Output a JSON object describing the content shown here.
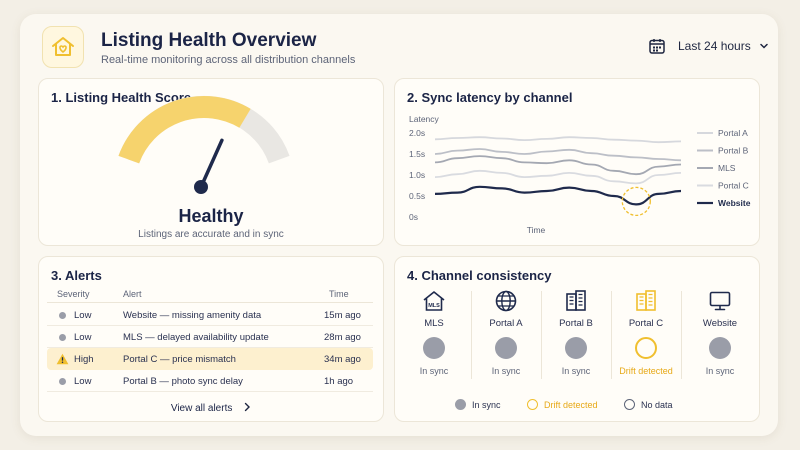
{
  "header": {
    "title": "Listing Health Overview",
    "subtitle": "Real-time monitoring across all distribution channels",
    "logo_icon": "house-heart-icon",
    "range_label": "Last 24 hours",
    "accent": "#f0bf2f"
  },
  "health": {
    "title": "1.  Listing Health Score",
    "status": "Healthy",
    "caption": "Listings are accurate and in sync",
    "score_fraction": 0.72
  },
  "sync": {
    "title": "2.  Sync latency by channel",
    "chart_data": {
      "type": "line",
      "ylabel": "Latency",
      "xlabel": "Time",
      "y_ticks": [
        "2.0s",
        "1.5s",
        "1.0s",
        "0.5s",
        "0s"
      ],
      "ylim": [
        0,
        2
      ],
      "grid": false,
      "legend": "right",
      "series": [
        {
          "name": "Portal A",
          "color": "#d6d8dd",
          "values": [
            1.85,
            1.88,
            1.9,
            1.87,
            1.83,
            1.86,
            1.9,
            1.88,
            1.84,
            1.82,
            1.78,
            1.8
          ]
        },
        {
          "name": "Portal B",
          "color": "#bcbfc7",
          "values": [
            1.5,
            1.58,
            1.62,
            1.55,
            1.5,
            1.56,
            1.6,
            1.52,
            1.46,
            1.42,
            1.38,
            1.35
          ]
        },
        {
          "name": "MLS",
          "color": "#a4a8b2",
          "values": [
            1.3,
            1.4,
            1.45,
            1.4,
            1.3,
            1.28,
            1.35,
            1.25,
            1.1,
            1.02,
            1.2,
            1.25
          ]
        },
        {
          "name": "Portal C",
          "color": "#d9dbe0",
          "values": [
            0.95,
            1.02,
            1.1,
            1.05,
            0.95,
            0.98,
            1.05,
            0.98,
            0.85,
            0.8,
            1.0,
            1.05
          ]
        },
        {
          "name": "Website",
          "color": "#1f2a4c",
          "values": [
            0.55,
            0.58,
            0.72,
            0.68,
            0.58,
            0.62,
            0.7,
            0.62,
            0.5,
            0.3,
            0.55,
            0.62
          ]
        }
      ],
      "highlight": {
        "index": 9,
        "color": "#f0bf2f"
      }
    }
  },
  "alerts": {
    "title": "3.  Alerts",
    "columns": [
      "Severity",
      "Alert",
      "Time"
    ],
    "rows": [
      {
        "severity": "Low",
        "alert": "Website — missing amenity data",
        "time": "15m ago"
      },
      {
        "severity": "Low",
        "alert": "MLS — delayed availability update",
        "time": "28m ago"
      },
      {
        "severity": "High",
        "alert": "Portal C — price mismatch",
        "time": "34m ago"
      },
      {
        "severity": "Low",
        "alert": "Portal B — photo sync delay",
        "time": "1h ago"
      }
    ],
    "view_all": "View all alerts"
  },
  "consistency": {
    "title": "4.  Channel consistency",
    "channels": [
      {
        "name": "MLS",
        "icon": "mls-house-icon",
        "status": "In sync"
      },
      {
        "name": "Portal A",
        "icon": "globe-icon",
        "status": "In sync"
      },
      {
        "name": "Portal B",
        "icon": "building-icon",
        "status": "In sync"
      },
      {
        "name": "Portal C",
        "icon": "building-icon",
        "status": "Drift detected"
      },
      {
        "name": "Website",
        "icon": "monitor-icon",
        "status": "In sync"
      }
    ],
    "legend": {
      "in_sync": "In sync",
      "drift": "Drift detected",
      "no_data": "No data"
    }
  }
}
